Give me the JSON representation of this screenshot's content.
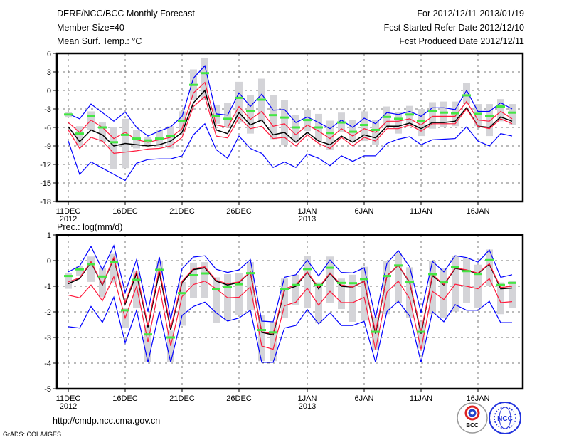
{
  "header": {
    "title": "DERF/NCC/BCC Monthly Forecast",
    "member_size": "Member Size=40",
    "variable": "Mean Surf. Temp.: °C",
    "period": "For 2012/12/11-2013/01/19",
    "started": "Fcst Started Refer Date 2012/12/10",
    "produced": "Fcst Produced Date 2012/12/11"
  },
  "footer": {
    "url": "http://cmdp.ncc.cma.gov.cn",
    "credit": "GrADS: COLA/IGES",
    "logos": [
      "BCC",
      "NCC"
    ]
  },
  "colors": {
    "blue": "#0000ff",
    "red": "#ff1a3c",
    "black": "#000000",
    "green": "#44e644",
    "grey": "#d4d4d8"
  },
  "chart_data": [
    {
      "type": "line",
      "title": "Mean Surf. Temp.: °C",
      "xlabel": "",
      "ylabel": "°C",
      "ylim": [
        -18,
        6
      ],
      "yticks": [
        6,
        3,
        0,
        -3,
        -6,
        -9,
        -12,
        -15,
        -18
      ],
      "xlim_days": [
        0,
        39
      ],
      "xticks": [
        {
          "day": 0,
          "label": "11DEC",
          "year": "2012"
        },
        {
          "day": 5,
          "label": "16DEC"
        },
        {
          "day": 10,
          "label": "21DEC"
        },
        {
          "day": 15,
          "label": "26DEC"
        },
        {
          "day": 21,
          "label": "1JAN",
          "year": "2013"
        },
        {
          "day": 26,
          "label": "6JAN"
        },
        {
          "day": 31,
          "label": "11JAN"
        },
        {
          "day": 36,
          "label": "16JAN"
        }
      ],
      "grid": true,
      "series": [
        {
          "name": "ensemble-mean",
          "color": "black",
          "values": [
            -5.9,
            -8.3,
            -6.4,
            -7.2,
            -9.0,
            -8.6,
            -8.8,
            -9.0,
            -8.8,
            -8.2,
            -6.8,
            -2.0,
            0.0,
            -6.4,
            -7.0,
            -3.6,
            -5.6,
            -4.8,
            -7.2,
            -6.8,
            -8.4,
            -6.8,
            -8.2,
            -8.8,
            -7.4,
            -8.4,
            -7.2,
            -7.7,
            -5.8,
            -5.8,
            -5.3,
            -6.2,
            -5.2,
            -5.2,
            -5.0,
            -2.8,
            -5.8,
            -6.0,
            -4.3,
            -5.0
          ]
        },
        {
          "name": "upper-red",
          "color": "red",
          "values": [
            -5.2,
            -6.8,
            -4.8,
            -6.0,
            -7.8,
            -6.8,
            -8.0,
            -8.4,
            -8.0,
            -7.6,
            -6.2,
            -0.4,
            1.3,
            -5.6,
            -6.0,
            -2.6,
            -4.7,
            -3.4,
            -5.8,
            -5.4,
            -7.2,
            -5.6,
            -6.6,
            -7.8,
            -6.2,
            -7.4,
            -6.2,
            -6.8,
            -5.0,
            -5.0,
            -4.6,
            -5.6,
            -4.2,
            -4.2,
            -4.2,
            -1.8,
            -4.8,
            -5.0,
            -3.4,
            -4.6
          ]
        },
        {
          "name": "lower-red",
          "color": "red",
          "values": [
            -6.4,
            -9.4,
            -7.6,
            -8.2,
            -10.2,
            -10.0,
            -9.8,
            -9.5,
            -9.4,
            -9.0,
            -7.6,
            -2.6,
            -1.0,
            -7.4,
            -7.7,
            -4.4,
            -6.2,
            -5.8,
            -7.8,
            -7.6,
            -9.0,
            -7.2,
            -8.6,
            -9.4,
            -7.6,
            -9.0,
            -7.6,
            -8.2,
            -6.2,
            -6.2,
            -5.6,
            -6.6,
            -5.4,
            -5.4,
            -5.4,
            -3.0,
            -5.8,
            -6.2,
            -4.6,
            -5.4
          ]
        },
        {
          "name": "upper-blue",
          "color": "blue",
          "values": [
            -3.8,
            -4.6,
            -2.2,
            -3.6,
            -5.0,
            -3.5,
            -6.0,
            -7.4,
            -6.6,
            -5.9,
            -4.2,
            2.0,
            4.0,
            -3.8,
            -4.0,
            -0.4,
            -2.6,
            -0.6,
            -3.2,
            -3.1,
            -5.2,
            -4.3,
            -5.2,
            -6.2,
            -4.8,
            -6.0,
            -4.5,
            -5.4,
            -3.6,
            -3.9,
            -3.4,
            -4.2,
            -2.8,
            -2.8,
            -3.1,
            0.0,
            -3.4,
            -3.4,
            -2.0,
            -3.0
          ]
        },
        {
          "name": "lower-blue",
          "color": "blue",
          "values": [
            -8.2,
            -13.6,
            -11.6,
            -12.6,
            -13.6,
            -14.6,
            -11.8,
            -11.2,
            -11.1,
            -11.1,
            -10.6,
            -7.2,
            -5.4,
            -9.6,
            -11.0,
            -7.4,
            -9.4,
            -10.2,
            -12.5,
            -11.6,
            -12.5,
            -10.3,
            -11.0,
            -12.2,
            -10.6,
            -11.5,
            -10.6,
            -10.6,
            -8.6,
            -7.9,
            -7.5,
            -8.8,
            -8.0,
            -7.9,
            -7.8,
            -5.9,
            -8.2,
            -9.0,
            -7.0,
            -7.4
          ]
        },
        {
          "name": "observed",
          "color": "green",
          "style": "marker",
          "values": [
            -3.9,
            -7.0,
            -4.2,
            -6.0,
            -8.4,
            -7.2,
            -7.8,
            -8.1,
            -7.8,
            -7.4,
            -5.0,
            0.9,
            2.8,
            -4.2,
            -4.6,
            -1.2,
            -3.3,
            -1.5,
            -4.0,
            -4.4,
            -6.0,
            -4.8,
            -6.0,
            -6.9,
            -5.2,
            -6.7,
            -5.6,
            -6.4,
            -4.3,
            -4.6,
            -3.9,
            -5.0,
            -3.4,
            -3.6,
            -3.7,
            -0.8,
            -3.8,
            -4.2,
            -2.6,
            -3.6
          ]
        }
      ],
      "ranges": {
        "name": "climatology-range",
        "color": "grey",
        "values": [
          [
            -4.4,
            -3.5
          ],
          [
            -9.0,
            -5.8
          ],
          [
            -6.4,
            -3.4
          ],
          [
            -8.4,
            -5.2
          ],
          [
            -12.8,
            -6.0
          ],
          [
            -12.6,
            -4.6
          ],
          [
            -9.4,
            -6.4
          ],
          [
            -8.8,
            -7.6
          ],
          [
            -9.2,
            -6.4
          ],
          [
            -9.4,
            -5.8
          ],
          [
            -6.8,
            -3.4
          ],
          [
            -1.6,
            3.4
          ],
          [
            -1.6,
            5.3
          ],
          [
            -5.4,
            -2.3
          ],
          [
            -6.0,
            -2.0
          ],
          [
            -5.2,
            1.4
          ],
          [
            -7.0,
            -0.7
          ],
          [
            -5.2,
            1.9
          ],
          [
            -7.9,
            -0.8
          ],
          [
            -8.9,
            -1.6
          ],
          [
            -8.4,
            -4.0
          ],
          [
            -6.6,
            -3.1
          ],
          [
            -8.2,
            -3.8
          ],
          [
            -9.6,
            -4.9
          ],
          [
            -6.8,
            -3.6
          ],
          [
            -8.4,
            -4.8
          ],
          [
            -8.2,
            -3.4
          ],
          [
            -8.8,
            -4.8
          ],
          [
            -5.8,
            -2.6
          ],
          [
            -7.0,
            -3.5
          ],
          [
            -5.8,
            -2.5
          ],
          [
            -7.4,
            -3.0
          ],
          [
            -6.2,
            -1.9
          ],
          [
            -6.0,
            -1.8
          ],
          [
            -5.8,
            -1.8
          ],
          [
            -2.2,
            1.2
          ],
          [
            -5.8,
            -2.2
          ],
          [
            -7.4,
            -2.2
          ],
          [
            -5.0,
            -1.4
          ],
          [
            -5.6,
            -2.2
          ]
        ]
      }
    },
    {
      "type": "line",
      "title": "Prec.: log(mm/d)",
      "xlabel": "",
      "ylabel": "log(mm/d)",
      "ylim": [
        -5,
        1
      ],
      "yticks": [
        1,
        0,
        -1,
        -2,
        -3,
        -4,
        -5
      ],
      "xlim_days": [
        0,
        39
      ],
      "xticks": [
        {
          "day": 0,
          "label": "11DEC",
          "year": "2012"
        },
        {
          "day": 5,
          "label": "16DEC"
        },
        {
          "day": 10,
          "label": "21DEC"
        },
        {
          "day": 15,
          "label": "26DEC"
        },
        {
          "day": 21,
          "label": "1JAN",
          "year": "2013"
        },
        {
          "day": 26,
          "label": "6JAN"
        },
        {
          "day": 31,
          "label": "11JAN"
        },
        {
          "day": 36,
          "label": "16JAN"
        }
      ],
      "grid": true,
      "series": [
        {
          "name": "ensemble-mean",
          "color": "black",
          "values": [
            -0.9,
            -0.7,
            -0.06,
            -0.95,
            0.1,
            -1.7,
            -0.5,
            -2.6,
            -0.45,
            -2.7,
            -0.85,
            -0.35,
            -0.28,
            -0.8,
            -0.95,
            -0.85,
            -0.45,
            -2.8,
            -2.9,
            -1.15,
            -1.0,
            -0.45,
            -1.1,
            -0.5,
            -1.0,
            -1.03,
            -0.8,
            -2.85,
            -0.6,
            -0.18,
            -0.85,
            -2.85,
            -0.58,
            -0.95,
            -0.3,
            -0.38,
            -0.5,
            -0.14,
            -1.1,
            -1.07
          ]
        },
        {
          "name": "upper-red",
          "color": "red",
          "values": [
            -0.83,
            -0.67,
            -0.04,
            -0.93,
            0.12,
            -1.64,
            -0.41,
            -2.53,
            -0.31,
            -2.63,
            -0.8,
            -0.31,
            -0.24,
            -0.77,
            -0.9,
            -0.83,
            -0.44,
            -2.78,
            -2.85,
            -1.1,
            -0.95,
            -0.44,
            -1.05,
            -0.48,
            -0.95,
            -1.03,
            -0.8,
            -2.78,
            -0.6,
            -0.18,
            -0.83,
            -2.78,
            -0.55,
            -0.93,
            -0.28,
            -0.36,
            -0.49,
            -0.12,
            -1.05,
            -1.0
          ]
        },
        {
          "name": "lower-red",
          "color": "red",
          "values": [
            -1.35,
            -1.45,
            -0.95,
            -1.57,
            -0.63,
            -2.24,
            -1.0,
            -3.18,
            -1.0,
            -3.33,
            -1.4,
            -0.93,
            -0.8,
            -1.1,
            -1.45,
            -1.43,
            -1.03,
            -3.33,
            -3.46,
            -1.76,
            -1.62,
            -1.08,
            -1.74,
            -1.2,
            -1.64,
            -1.64,
            -1.43,
            -3.48,
            -1.23,
            -0.8,
            -1.48,
            -3.46,
            -1.2,
            -1.52,
            -0.92,
            -1.0,
            -1.1,
            -0.7,
            -1.64,
            -1.6
          ]
        },
        {
          "name": "upper-blue",
          "color": "blue",
          "values": [
            -0.44,
            -0.21,
            0.55,
            -0.36,
            0.58,
            -1.25,
            0.04,
            -1.99,
            0.14,
            -2.29,
            -0.31,
            0.14,
            0.19,
            -0.34,
            -0.46,
            -0.36,
            0.04,
            -2.36,
            -2.39,
            -0.65,
            -0.55,
            0.02,
            -0.6,
            0.02,
            -0.46,
            -0.48,
            -0.28,
            -2.24,
            -0.11,
            0.39,
            -0.24,
            -2.04,
            -0.03,
            -0.44,
            0.19,
            0.12,
            -0.06,
            0.41,
            -0.65,
            -0.55
          ]
        },
        {
          "name": "lower-blue",
          "color": "blue",
          "values": [
            -2.58,
            -2.63,
            -1.79,
            -2.41,
            -1.43,
            -3.21,
            -1.94,
            -3.97,
            -1.99,
            -3.97,
            -2.14,
            -1.79,
            -1.62,
            -2.04,
            -2.36,
            -2.24,
            -1.94,
            -3.97,
            -3.97,
            -2.63,
            -2.53,
            -1.91,
            -2.47,
            -2.04,
            -2.53,
            -2.53,
            -2.37,
            -3.97,
            -1.99,
            -1.59,
            -2.16,
            -3.97,
            -1.99,
            -2.39,
            -1.72,
            -1.94,
            -1.94,
            -1.59,
            -2.42,
            -2.42
          ]
        },
        {
          "name": "observed",
          "color": "green",
          "style": "marker",
          "values": [
            -0.6,
            -0.34,
            -0.14,
            -0.62,
            -0.06,
            -1.94,
            -0.75,
            -2.88,
            -0.36,
            -3.0,
            -1.27,
            -0.57,
            -0.5,
            -1.12,
            -1.02,
            -0.92,
            -0.49,
            -2.71,
            -2.8,
            -1.1,
            -0.95,
            -0.33,
            -0.95,
            -0.28,
            -0.87,
            -0.88,
            -0.72,
            -2.78,
            -0.6,
            -0.19,
            -0.82,
            -2.78,
            -0.53,
            -0.85,
            -0.26,
            -0.41,
            -0.52,
            0.02,
            -0.95,
            -0.87
          ]
        }
      ],
      "ranges": {
        "name": "climatology-range",
        "color": "grey",
        "values": [
          [
            -1.1,
            -0.48
          ],
          [
            -0.6,
            -0.2
          ],
          [
            -0.83,
            0.16
          ],
          [
            -1.43,
            -0.3
          ],
          [
            -0.85,
            0.26
          ],
          [
            -2.64,
            -1.84
          ],
          [
            -1.84,
            -0.4
          ],
          [
            -3.97,
            -2.53
          ],
          [
            -0.55,
            0.0
          ],
          [
            -3.97,
            -2.73
          ],
          [
            -2.54,
            -0.83
          ],
          [
            -1.45,
            -0.08
          ],
          [
            -1.45,
            -0.06
          ],
          [
            -2.44,
            -0.65
          ],
          [
            -2.34,
            -0.53
          ],
          [
            -2.12,
            -0.5
          ],
          [
            -1.94,
            -0.06
          ],
          [
            -3.92,
            -2.14
          ],
          [
            -3.92,
            -2.39
          ],
          [
            -2.24,
            -0.7
          ],
          [
            -1.74,
            -0.55
          ],
          [
            -1.84,
            0.19
          ],
          [
            -2.44,
            -0.85
          ],
          [
            -1.64,
            0.16
          ],
          [
            -1.89,
            -0.7
          ],
          [
            -2.39,
            -0.55
          ],
          [
            -2.34,
            -0.24
          ],
          [
            -3.48,
            -2.19
          ],
          [
            -2.09,
            -0.01
          ],
          [
            -1.64,
            0.29
          ],
          [
            -2.24,
            -0.26
          ],
          [
            -3.43,
            -2.39
          ],
          [
            -2.09,
            -0.01
          ],
          [
            -2.24,
            -0.31
          ],
          [
            -1.99,
            0.19
          ],
          [
            -1.64,
            0.09
          ],
          [
            -1.84,
            -0.16
          ],
          [
            -1.0,
            0.43
          ],
          [
            -2.09,
            -0.85
          ],
          [
            -1.84,
            -0.8
          ]
        ]
      }
    }
  ]
}
